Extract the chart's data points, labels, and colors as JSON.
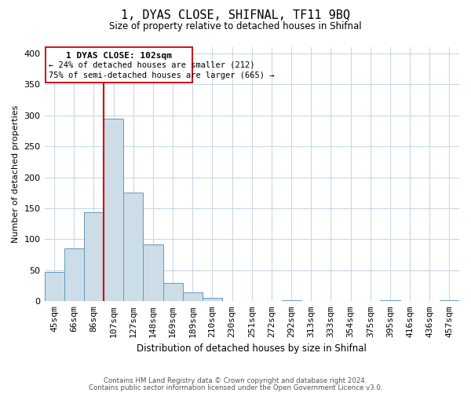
{
  "title": "1, DYAS CLOSE, SHIFNAL, TF11 9BQ",
  "subtitle": "Size of property relative to detached houses in Shifnal",
  "xlabel": "Distribution of detached houses by size in Shifnal",
  "ylabel": "Number of detached properties",
  "bar_labels": [
    "45sqm",
    "66sqm",
    "86sqm",
    "107sqm",
    "127sqm",
    "148sqm",
    "169sqm",
    "189sqm",
    "210sqm",
    "230sqm",
    "251sqm",
    "272sqm",
    "292sqm",
    "313sqm",
    "333sqm",
    "354sqm",
    "375sqm",
    "395sqm",
    "416sqm",
    "436sqm",
    "457sqm"
  ],
  "bar_values": [
    47,
    85,
    144,
    295,
    176,
    92,
    30,
    14,
    5,
    0,
    0,
    0,
    2,
    0,
    0,
    0,
    0,
    2,
    0,
    0,
    2
  ],
  "bar_color": "#ccdde8",
  "bar_edge_color": "#6699bb",
  "vline_x": 3,
  "vline_color": "#cc0000",
  "ylim": [
    0,
    410
  ],
  "yticks": [
    0,
    50,
    100,
    150,
    200,
    250,
    300,
    350,
    400
  ],
  "annotation_title": "1 DYAS CLOSE: 102sqm",
  "annotation_line1": "← 24% of detached houses are smaller (212)",
  "annotation_line2": "75% of semi-detached houses are larger (665) →",
  "annotation_border_color": "#cc0000",
  "footer1": "Contains HM Land Registry data © Crown copyright and database right 2024.",
  "footer2": "Contains public sector information licensed under the Open Government Licence v3.0.",
  "background_color": "#ffffff",
  "grid_color": "#c8d8e8"
}
